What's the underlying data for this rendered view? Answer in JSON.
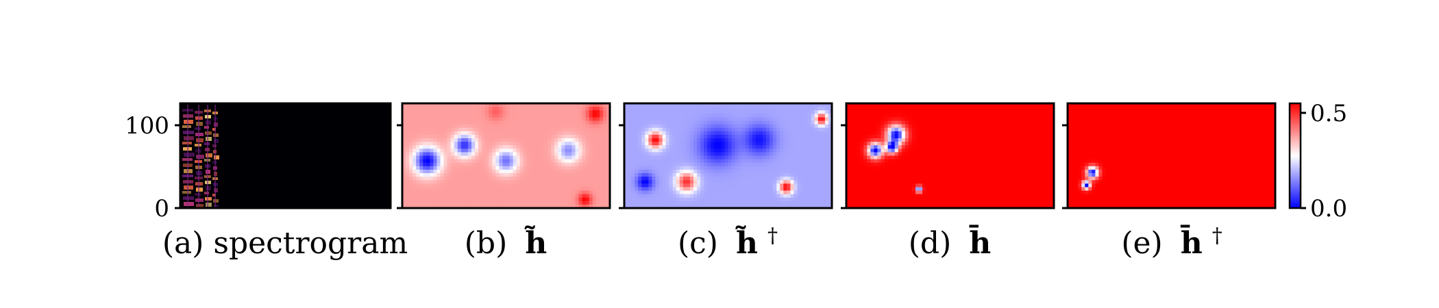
{
  "chart_data": [
    {
      "type": "heatmap",
      "panel": "a",
      "caption": "(a) spectrogram",
      "caption_parts": {
        "prefix": "(a)",
        "symbol": "spectrogram",
        "sup": ""
      },
      "colormap": "magma",
      "y_ticks": [
        0,
        100
      ],
      "y_tick_labels": [
        "0",
        "100"
      ],
      "ylim": [
        0,
        128
      ],
      "description_value": "bright vertical formant streaks in the leftmost ~18% of frames; remainder near zero (black)"
    },
    {
      "type": "heatmap",
      "panel": "b",
      "caption": "(b) h~",
      "caption_parts": {
        "prefix": "(b)",
        "symbol": "h̃",
        "sup": ""
      },
      "colormap": "bwr",
      "ylim": [
        0,
        128
      ],
      "blobs": [
        {
          "cx": 0.12,
          "cy": 0.55,
          "r": 0.16,
          "v": 0.0
        },
        {
          "cx": 0.3,
          "cy": 0.4,
          "r": 0.13,
          "v": 0.05
        },
        {
          "cx": 0.5,
          "cy": 0.55,
          "r": 0.14,
          "v": 0.12
        },
        {
          "cx": 0.8,
          "cy": 0.45,
          "r": 0.14,
          "v": 0.15
        },
        {
          "cx": 0.93,
          "cy": 0.1,
          "r": 0.1,
          "v": 0.55
        },
        {
          "cx": 0.88,
          "cy": 0.92,
          "r": 0.08,
          "v": 0.55
        },
        {
          "cx": 0.45,
          "cy": 0.08,
          "r": 0.1,
          "v": 0.45
        }
      ],
      "base": 0.38
    },
    {
      "type": "heatmap",
      "panel": "c",
      "caption": "(c) h~†",
      "caption_parts": {
        "prefix": "(c)",
        "symbol": "h̃",
        "sup": "†"
      },
      "colormap": "bwr",
      "ylim": [
        0,
        128
      ],
      "blobs": [
        {
          "cx": 0.45,
          "cy": 0.4,
          "r": 0.22,
          "v": 0.0
        },
        {
          "cx": 0.65,
          "cy": 0.35,
          "r": 0.18,
          "v": 0.02
        },
        {
          "cx": 0.1,
          "cy": 0.75,
          "r": 0.1,
          "v": 0.0
        },
        {
          "cx": 0.15,
          "cy": 0.35,
          "r": 0.1,
          "v": 0.55
        },
        {
          "cx": 0.3,
          "cy": 0.75,
          "r": 0.12,
          "v": 0.5
        },
        {
          "cx": 0.78,
          "cy": 0.8,
          "r": 0.08,
          "v": 0.55
        },
        {
          "cx": 0.95,
          "cy": 0.15,
          "r": 0.07,
          "v": 0.55
        }
      ],
      "base": 0.18
    },
    {
      "type": "heatmap",
      "panel": "d",
      "caption": "(d) h̄",
      "caption_parts": {
        "prefix": "(d)",
        "symbol": "h̄",
        "sup": ""
      },
      "colormap": "bwr",
      "ylim": [
        0,
        128
      ],
      "blobs": [
        {
          "cx": 0.24,
          "cy": 0.3,
          "r": 0.11,
          "v": 0.0
        },
        {
          "cx": 0.14,
          "cy": 0.45,
          "r": 0.09,
          "v": 0.0
        },
        {
          "cx": 0.22,
          "cy": 0.42,
          "r": 0.07,
          "v": 0.0
        },
        {
          "cx": 0.35,
          "cy": 0.82,
          "r": 0.035,
          "v": 0.0
        }
      ],
      "base": 0.55
    },
    {
      "type": "heatmap",
      "panel": "e",
      "caption": "(e) h̄†",
      "caption_parts": {
        "prefix": "(e)",
        "symbol": "h̄",
        "sup": "†"
      },
      "colormap": "bwr",
      "ylim": [
        0,
        128
      ],
      "blobs": [
        {
          "cx": 0.12,
          "cy": 0.66,
          "r": 0.07,
          "v": 0.0
        },
        {
          "cx": 0.09,
          "cy": 0.78,
          "r": 0.05,
          "v": 0.0
        }
      ],
      "base": 0.55
    }
  ],
  "colorbar": {
    "colormap": "bwr",
    "range": [
      0.0,
      0.55
    ],
    "ticks": [
      0.0,
      0.5
    ],
    "tick_labels": [
      "0.0",
      "0.5"
    ],
    "colors": {
      "low": "#0000ff",
      "mid": "#ffffff",
      "high": "#ff0000"
    }
  }
}
